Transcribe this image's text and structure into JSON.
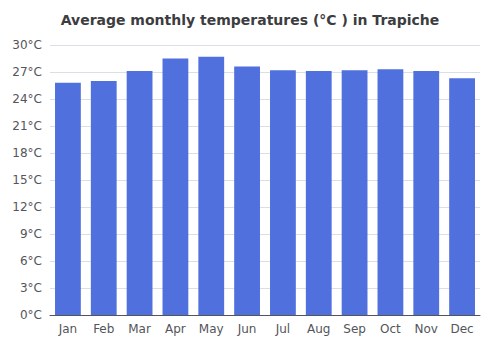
{
  "chart_data": {
    "type": "bar",
    "title": "Average monthly temperatures (°C ) in Trapiche",
    "categories": [
      "Jan",
      "Feb",
      "Mar",
      "Apr",
      "May",
      "Jun",
      "Jul",
      "Aug",
      "Sep",
      "Oct",
      "Nov",
      "Dec"
    ],
    "values": [
      25.8,
      26.0,
      27.1,
      28.5,
      28.7,
      27.6,
      27.2,
      27.1,
      27.2,
      27.3,
      27.1,
      26.3
    ],
    "ylim": [
      0,
      30
    ],
    "yticks": [
      {
        "value": 0,
        "label": "0°C"
      },
      {
        "value": 3,
        "label": "3°C"
      },
      {
        "value": 6,
        "label": "6°C"
      },
      {
        "value": 9,
        "label": "9°C"
      },
      {
        "value": 12,
        "label": "12°C"
      },
      {
        "value": 15,
        "label": "15°C"
      },
      {
        "value": 18,
        "label": "18°C"
      },
      {
        "value": 21,
        "label": "21°C"
      },
      {
        "value": 24,
        "label": "24°C"
      },
      {
        "value": 27,
        "label": "27°C"
      },
      {
        "value": 30,
        "label": "30°C"
      }
    ],
    "grid": true
  }
}
